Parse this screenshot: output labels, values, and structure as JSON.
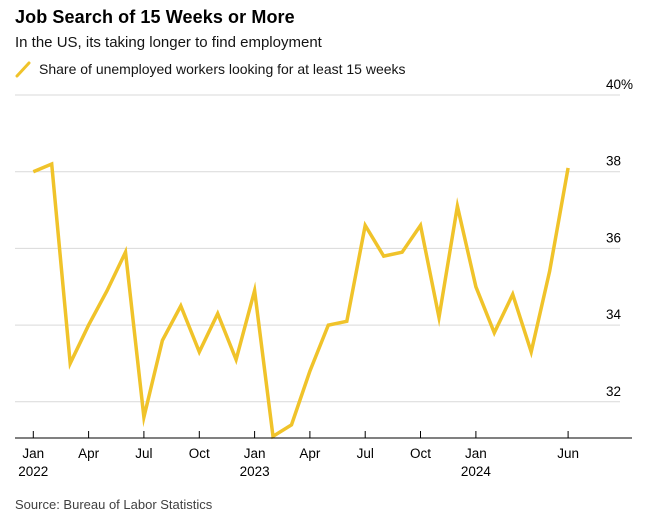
{
  "header": {
    "title": "Job Search of 15 Weeks or More",
    "subtitle": "In the US, its taking longer to find employment"
  },
  "legend": {
    "swatch_color": "#F0C32A",
    "label": "Share of unemployed workers looking for at least 15 weeks"
  },
  "chart_data": {
    "type": "line",
    "title": "Job Search of 15 Weeks or More",
    "subtitle": "In the US, its taking longer to find employment",
    "unit": "%",
    "ylim": [
      31,
      40.3
    ],
    "grid": "horizontal",
    "legend_position": "top-left",
    "gridline_color": "#d9d9d9",
    "axis_color": "#000000",
    "x": [
      "Jan 2022",
      "Feb 2022",
      "Mar 2022",
      "Apr 2022",
      "May 2022",
      "Jun 2022",
      "Jul 2022",
      "Aug 2022",
      "Sep 2022",
      "Oct 2022",
      "Nov 2022",
      "Dec 2022",
      "Jan 2023",
      "Feb 2023",
      "Mar 2023",
      "Apr 2023",
      "May 2023",
      "Jun 2023",
      "Jul 2023",
      "Aug 2023",
      "Sep 2023",
      "Oct 2023",
      "Nov 2023",
      "Dec 2023",
      "Jan 2024",
      "Feb 2024",
      "Mar 2024",
      "Apr 2024",
      "May 2024",
      "Jun 2024"
    ],
    "series": [
      {
        "name": "Share of unemployed workers looking for at least 15 weeks",
        "color": "#F0C32A",
        "values": [
          38.0,
          38.2,
          33.0,
          34.0,
          34.9,
          35.9,
          31.6,
          33.6,
          34.5,
          33.3,
          34.3,
          33.1,
          34.9,
          31.1,
          31.4,
          32.8,
          34.0,
          34.1,
          36.6,
          35.8,
          35.9,
          36.6,
          34.2,
          37.1,
          35.0,
          33.8,
          34.8,
          33.3,
          35.4,
          38.1
        ]
      }
    ],
    "y_ticks": [
      {
        "value": 40,
        "label": "40%"
      },
      {
        "value": 38,
        "label": "38"
      },
      {
        "value": 36,
        "label": "36"
      },
      {
        "value": 34,
        "label": "34"
      },
      {
        "value": 32,
        "label": "32"
      }
    ],
    "x_ticks": [
      {
        "index": 0,
        "label": "Jan",
        "year": "2022"
      },
      {
        "index": 3,
        "label": "Apr",
        "year": ""
      },
      {
        "index": 6,
        "label": "Jul",
        "year": ""
      },
      {
        "index": 9,
        "label": "Oct",
        "year": ""
      },
      {
        "index": 12,
        "label": "Jan",
        "year": "2023"
      },
      {
        "index": 15,
        "label": "Apr",
        "year": ""
      },
      {
        "index": 18,
        "label": "Jul",
        "year": ""
      },
      {
        "index": 21,
        "label": "Oct",
        "year": ""
      },
      {
        "index": 24,
        "label": "Jan",
        "year": "2024"
      },
      {
        "index": 29,
        "label": "Jun",
        "year": ""
      }
    ]
  },
  "source": {
    "label": "Source: Bureau of Labor Statistics"
  }
}
